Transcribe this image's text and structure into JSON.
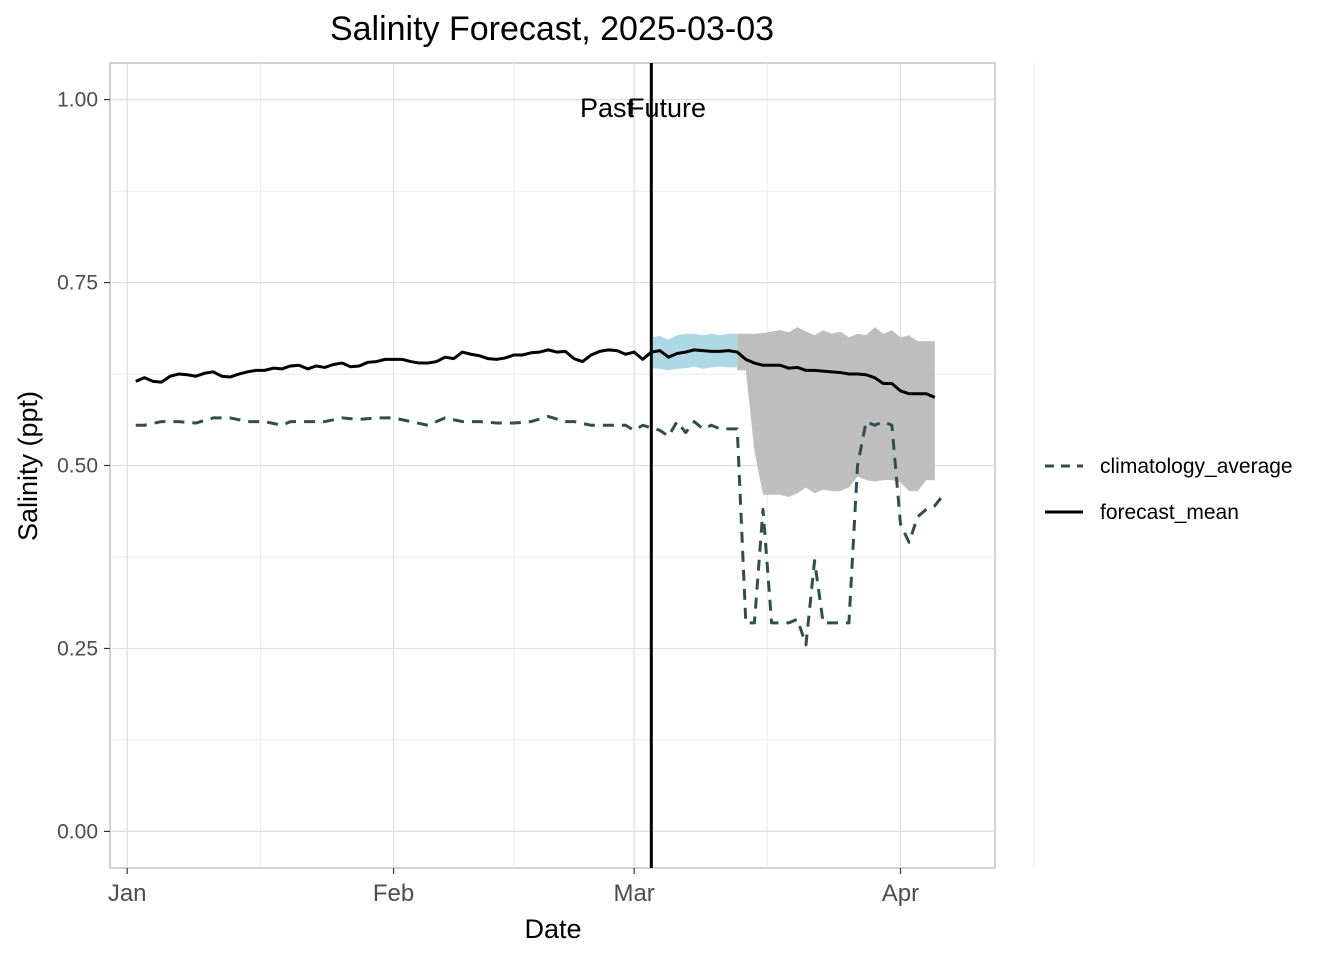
{
  "chart_data": {
    "type": "line",
    "title": "Salinity Forecast, 2025-03-03",
    "xlabel": "Date",
    "ylabel": "Salinity (ppt)",
    "x_range": [
      "2024-12-30",
      "2025-04-12"
    ],
    "ylim": [
      -0.05,
      1.05
    ],
    "y_ticks": [
      0.0,
      0.25,
      0.5,
      0.75,
      1.0
    ],
    "y_tick_labels": [
      "0.00",
      "0.25",
      "0.50",
      "0.75",
      "1.00"
    ],
    "x_ticks": [
      "2025-01-01",
      "2025-02-01",
      "2025-03-01",
      "2025-04-01"
    ],
    "x_tick_labels": [
      "Jan",
      "Feb",
      "Mar",
      "Apr"
    ],
    "grid": true,
    "legend_position": "right",
    "forecast_date": "2025-03-03",
    "annotations": [
      "Past",
      "Future"
    ],
    "series": [
      {
        "name": "climatology_average",
        "style": "dashed",
        "color": "#2f4f4f",
        "points": [
          [
            "2025-01-02",
            0.555
          ],
          [
            "2025-01-03",
            0.555
          ],
          [
            "2025-01-05",
            0.56
          ],
          [
            "2025-01-07",
            0.56
          ],
          [
            "2025-01-09",
            0.558
          ],
          [
            "2025-01-11",
            0.565
          ],
          [
            "2025-01-13",
            0.565
          ],
          [
            "2025-01-15",
            0.56
          ],
          [
            "2025-01-17",
            0.56
          ],
          [
            "2025-01-19",
            0.555
          ],
          [
            "2025-01-20",
            0.56
          ],
          [
            "2025-01-24",
            0.56
          ],
          [
            "2025-01-26",
            0.565
          ],
          [
            "2025-01-28",
            0.563
          ],
          [
            "2025-01-30",
            0.565
          ],
          [
            "2025-02-01",
            0.565
          ],
          [
            "2025-02-03",
            0.56
          ],
          [
            "2025-02-05",
            0.555
          ],
          [
            "2025-02-07",
            0.565
          ],
          [
            "2025-02-09",
            0.56
          ],
          [
            "2025-02-11",
            0.56
          ],
          [
            "2025-02-13",
            0.558
          ],
          [
            "2025-02-15",
            0.558
          ],
          [
            "2025-02-17",
            0.56
          ],
          [
            "2025-02-19",
            0.567
          ],
          [
            "2025-02-21",
            0.56
          ],
          [
            "2025-02-22",
            0.56
          ],
          [
            "2025-02-24",
            0.555
          ],
          [
            "2025-02-26",
            0.555
          ],
          [
            "2025-02-28",
            0.555
          ],
          [
            "2025-03-01",
            0.548
          ],
          [
            "2025-03-02",
            0.555
          ],
          [
            "2025-03-04",
            0.548
          ],
          [
            "2025-03-05",
            0.54
          ],
          [
            "2025-03-06",
            0.56
          ],
          [
            "2025-03-07",
            0.545
          ],
          [
            "2025-03-08",
            0.56
          ],
          [
            "2025-03-09",
            0.55
          ],
          [
            "2025-03-10",
            0.555
          ],
          [
            "2025-03-11",
            0.55
          ],
          [
            "2025-03-12",
            0.55
          ],
          [
            "2025-03-13",
            0.55
          ],
          [
            "2025-03-14",
            0.285
          ],
          [
            "2025-03-15",
            0.285
          ],
          [
            "2025-03-16",
            0.44
          ],
          [
            "2025-03-17",
            0.285
          ],
          [
            "2025-03-18",
            0.285
          ],
          [
            "2025-03-19",
            0.285
          ],
          [
            "2025-03-20",
            0.29
          ],
          [
            "2025-03-21",
            0.255
          ],
          [
            "2025-03-22",
            0.37
          ],
          [
            "2025-03-23",
            0.285
          ],
          [
            "2025-03-24",
            0.285
          ],
          [
            "2025-03-25",
            0.285
          ],
          [
            "2025-03-26",
            0.285
          ],
          [
            "2025-03-27",
            0.5
          ],
          [
            "2025-03-28",
            0.56
          ],
          [
            "2025-03-29",
            0.555
          ],
          [
            "2025-03-30",
            0.56
          ],
          [
            "2025-03-31",
            0.555
          ],
          [
            "2025-04-01",
            0.42
          ],
          [
            "2025-04-02",
            0.395
          ],
          [
            "2025-04-03",
            0.43
          ],
          [
            "2025-04-04",
            0.44
          ],
          [
            "2025-04-05",
            0.445
          ],
          [
            "2025-04-06",
            0.46
          ]
        ]
      },
      {
        "name": "forecast_mean",
        "style": "solid",
        "color": "#000000",
        "points": [
          [
            "2025-01-02",
            0.615
          ],
          [
            "2025-01-03",
            0.62
          ],
          [
            "2025-01-04",
            0.615
          ],
          [
            "2025-01-05",
            0.614
          ],
          [
            "2025-01-06",
            0.622
          ],
          [
            "2025-01-07",
            0.625
          ],
          [
            "2025-01-08",
            0.624
          ],
          [
            "2025-01-09",
            0.622
          ],
          [
            "2025-01-10",
            0.626
          ],
          [
            "2025-01-11",
            0.628
          ],
          [
            "2025-01-12",
            0.622
          ],
          [
            "2025-01-13",
            0.621
          ],
          [
            "2025-01-14",
            0.625
          ],
          [
            "2025-01-15",
            0.628
          ],
          [
            "2025-01-16",
            0.63
          ],
          [
            "2025-01-17",
            0.63
          ],
          [
            "2025-01-18",
            0.633
          ],
          [
            "2025-01-19",
            0.632
          ],
          [
            "2025-01-20",
            0.636
          ],
          [
            "2025-01-21",
            0.637
          ],
          [
            "2025-01-22",
            0.632
          ],
          [
            "2025-01-23",
            0.636
          ],
          [
            "2025-01-24",
            0.634
          ],
          [
            "2025-01-25",
            0.638
          ],
          [
            "2025-01-26",
            0.64
          ],
          [
            "2025-01-27",
            0.635
          ],
          [
            "2025-01-28",
            0.636
          ],
          [
            "2025-01-29",
            0.641
          ],
          [
            "2025-01-30",
            0.642
          ],
          [
            "2025-01-31",
            0.645
          ],
          [
            "2025-02-01",
            0.645
          ],
          [
            "2025-02-02",
            0.645
          ],
          [
            "2025-02-03",
            0.642
          ],
          [
            "2025-02-04",
            0.64
          ],
          [
            "2025-02-05",
            0.64
          ],
          [
            "2025-02-06",
            0.642
          ],
          [
            "2025-02-07",
            0.648
          ],
          [
            "2025-02-08",
            0.646
          ],
          [
            "2025-02-09",
            0.655
          ],
          [
            "2025-02-10",
            0.652
          ],
          [
            "2025-02-11",
            0.65
          ],
          [
            "2025-02-12",
            0.646
          ],
          [
            "2025-02-13",
            0.645
          ],
          [
            "2025-02-14",
            0.647
          ],
          [
            "2025-02-15",
            0.651
          ],
          [
            "2025-02-16",
            0.651
          ],
          [
            "2025-02-17",
            0.654
          ],
          [
            "2025-02-18",
            0.655
          ],
          [
            "2025-02-19",
            0.658
          ],
          [
            "2025-02-20",
            0.655
          ],
          [
            "2025-02-21",
            0.656
          ],
          [
            "2025-02-22",
            0.646
          ],
          [
            "2025-02-23",
            0.642
          ],
          [
            "2025-02-24",
            0.651
          ],
          [
            "2025-02-25",
            0.656
          ],
          [
            "2025-02-26",
            0.658
          ],
          [
            "2025-02-27",
            0.657
          ],
          [
            "2025-02-28",
            0.652
          ],
          [
            "2025-03-01",
            0.655
          ],
          [
            "2025-03-02",
            0.645
          ],
          [
            "2025-03-03",
            0.655
          ],
          [
            "2025-03-04",
            0.657
          ],
          [
            "2025-03-05",
            0.648
          ],
          [
            "2025-03-06",
            0.653
          ],
          [
            "2025-03-07",
            0.655
          ],
          [
            "2025-03-08",
            0.658
          ],
          [
            "2025-03-09",
            0.657
          ],
          [
            "2025-03-10",
            0.656
          ],
          [
            "2025-03-11",
            0.656
          ],
          [
            "2025-03-12",
            0.657
          ],
          [
            "2025-03-13",
            0.655
          ],
          [
            "2025-03-14",
            0.645
          ],
          [
            "2025-03-15",
            0.64
          ],
          [
            "2025-03-16",
            0.637
          ],
          [
            "2025-03-17",
            0.637
          ],
          [
            "2025-03-18",
            0.637
          ],
          [
            "2025-03-19",
            0.633
          ],
          [
            "2025-03-20",
            0.634
          ],
          [
            "2025-03-21",
            0.63
          ],
          [
            "2025-03-22",
            0.63
          ],
          [
            "2025-03-23",
            0.629
          ],
          [
            "2025-03-24",
            0.628
          ],
          [
            "2025-03-25",
            0.627
          ],
          [
            "2025-03-26",
            0.625
          ],
          [
            "2025-03-27",
            0.625
          ],
          [
            "2025-03-28",
            0.624
          ],
          [
            "2025-03-29",
            0.62
          ],
          [
            "2025-03-30",
            0.612
          ],
          [
            "2025-03-31",
            0.612
          ],
          [
            "2025-04-01",
            0.602
          ],
          [
            "2025-04-02",
            0.598
          ],
          [
            "2025-04-03",
            0.598
          ],
          [
            "2025-04-04",
            0.598
          ],
          [
            "2025-04-05",
            0.593
          ]
        ]
      }
    ],
    "bands": [
      {
        "color": "#add8e6",
        "x": [
          "2025-03-03",
          "2025-03-04",
          "2025-03-05",
          "2025-03-06",
          "2025-03-07",
          "2025-03-08",
          "2025-03-09",
          "2025-03-10",
          "2025-03-11",
          "2025-03-12",
          "2025-03-13"
        ],
        "upper": [
          0.675,
          0.677,
          0.672,
          0.678,
          0.68,
          0.68,
          0.678,
          0.68,
          0.678,
          0.68,
          0.68
        ],
        "lower": [
          0.633,
          0.632,
          0.63,
          0.632,
          0.633,
          0.635,
          0.632,
          0.634,
          0.635,
          0.634,
          0.634
        ]
      },
      {
        "color": "#bebebe",
        "x": [
          "2025-03-13",
          "2025-03-14",
          "2025-03-15",
          "2025-03-16",
          "2025-03-17",
          "2025-03-18",
          "2025-03-19",
          "2025-03-20",
          "2025-03-21",
          "2025-03-22",
          "2025-03-23",
          "2025-03-24",
          "2025-03-25",
          "2025-03-26",
          "2025-03-27",
          "2025-03-28",
          "2025-03-29",
          "2025-03-30",
          "2025-03-31",
          "2025-04-01",
          "2025-04-02",
          "2025-04-03",
          "2025-04-04",
          "2025-04-05"
        ],
        "upper": [
          0.68,
          0.68,
          0.68,
          0.681,
          0.683,
          0.685,
          0.682,
          0.689,
          0.683,
          0.678,
          0.685,
          0.68,
          0.683,
          0.675,
          0.68,
          0.678,
          0.689,
          0.68,
          0.685,
          0.675,
          0.678,
          0.67,
          0.67,
          0.67
        ],
        "lower": [
          0.63,
          0.63,
          0.52,
          0.46,
          0.46,
          0.46,
          0.457,
          0.462,
          0.47,
          0.462,
          0.467,
          0.465,
          0.465,
          0.47,
          0.485,
          0.48,
          0.478,
          0.48,
          0.48,
          0.477,
          0.465,
          0.465,
          0.48,
          0.48
        ]
      }
    ]
  }
}
